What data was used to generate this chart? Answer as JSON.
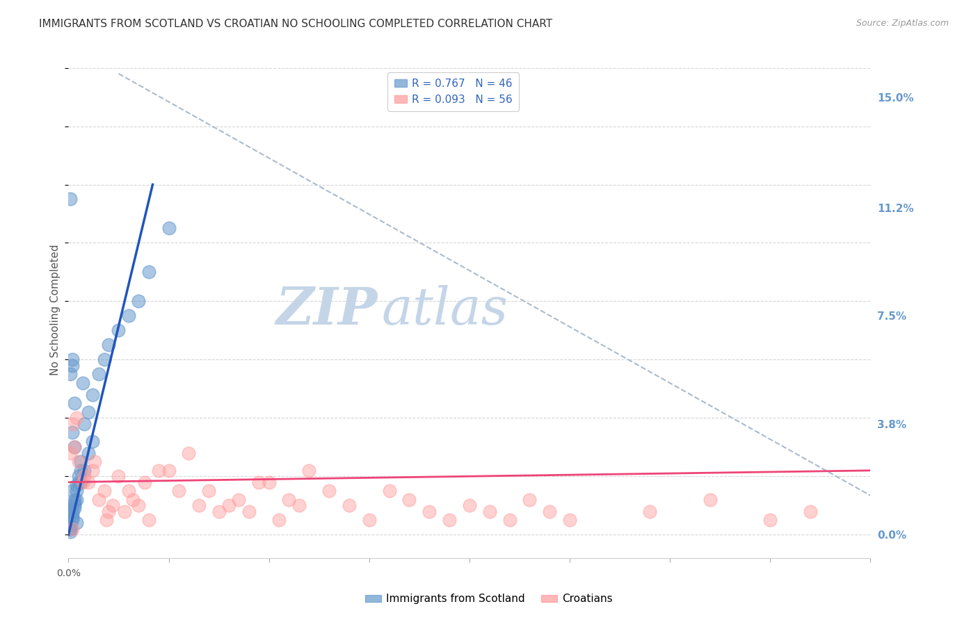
{
  "title": "IMMIGRANTS FROM SCOTLAND VS CROATIAN NO SCHOOLING COMPLETED CORRELATION CHART",
  "source": "Source: ZipAtlas.com",
  "ylabel": "No Schooling Completed",
  "ytick_labels": [
    "15.0%",
    "11.2%",
    "7.5%",
    "3.8%",
    "0.0%"
  ],
  "ytick_values": [
    0.15,
    0.112,
    0.075,
    0.038,
    0.0
  ],
  "xlim": [
    0.0,
    0.4
  ],
  "ylim": [
    -0.008,
    0.162
  ],
  "scotland_R": 0.767,
  "scotland_N": 46,
  "croatian_R": 0.093,
  "croatian_N": 56,
  "scatter_color_scotland": "#6699CC",
  "scatter_color_croatian": "#FF9999",
  "line_color_scotland": "#2255BB",
  "line_color_croatian": "#EE4477",
  "dashed_line_color": "#AABBCC",
  "watermark_zip": "ZIP",
  "watermark_atlas": "atlas",
  "watermark_color_zip": "#C5D5E8",
  "watermark_color_atlas": "#C5D5E8",
  "legend_scotland": "Immigrants from Scotland",
  "legend_croatian": "Croatians",
  "background_color": "#FFFFFF",
  "grid_color": "#CCCCCC",
  "title_color": "#333333",
  "right_axis_color": "#6699CC",
  "scotland_scatter_x": [
    0.002,
    0.003,
    0.001,
    0.004,
    0.005,
    0.006,
    0.003,
    0.002,
    0.001,
    0.008,
    0.01,
    0.012,
    0.015,
    0.018,
    0.02,
    0.025,
    0.03,
    0.035,
    0.04,
    0.05,
    0.001,
    0.002,
    0.003,
    0.004,
    0.006,
    0.008,
    0.01,
    0.012,
    0.002,
    0.003,
    0.001,
    0.004,
    0.005,
    0.006,
    0.002,
    0.001,
    0.003,
    0.007,
    0.002,
    0.001,
    0.001,
    0.002,
    0.003,
    0.004,
    0.001,
    0.002
  ],
  "scotland_scatter_y": [
    0.005,
    0.01,
    0.008,
    0.015,
    0.02,
    0.025,
    0.03,
    0.035,
    0.002,
    0.038,
    0.042,
    0.048,
    0.055,
    0.06,
    0.065,
    0.07,
    0.075,
    0.08,
    0.09,
    0.105,
    0.003,
    0.006,
    0.009,
    0.012,
    0.018,
    0.022,
    0.028,
    0.032,
    0.007,
    0.011,
    0.001,
    0.004,
    0.018,
    0.022,
    0.06,
    0.055,
    0.045,
    0.052,
    0.015,
    0.002,
    0.003,
    0.008,
    0.012,
    0.017,
    0.115,
    0.058
  ],
  "croatian_scatter_x": [
    0.002,
    0.005,
    0.01,
    0.015,
    0.02,
    0.025,
    0.03,
    0.035,
    0.04,
    0.05,
    0.06,
    0.07,
    0.08,
    0.09,
    0.1,
    0.11,
    0.12,
    0.13,
    0.14,
    0.15,
    0.003,
    0.007,
    0.012,
    0.018,
    0.022,
    0.028,
    0.032,
    0.038,
    0.045,
    0.055,
    0.065,
    0.075,
    0.085,
    0.095,
    0.105,
    0.115,
    0.16,
    0.17,
    0.18,
    0.19,
    0.2,
    0.21,
    0.22,
    0.23,
    0.24,
    0.25,
    0.29,
    0.32,
    0.35,
    0.37,
    0.004,
    0.008,
    0.013,
    0.019,
    0.002,
    0.001
  ],
  "croatian_scatter_y": [
    0.038,
    0.025,
    0.018,
    0.012,
    0.008,
    0.02,
    0.015,
    0.01,
    0.005,
    0.022,
    0.028,
    0.015,
    0.01,
    0.008,
    0.018,
    0.012,
    0.022,
    0.015,
    0.01,
    0.005,
    0.03,
    0.018,
    0.022,
    0.015,
    0.01,
    0.008,
    0.012,
    0.018,
    0.022,
    0.015,
    0.01,
    0.008,
    0.012,
    0.018,
    0.005,
    0.01,
    0.015,
    0.012,
    0.008,
    0.005,
    0.01,
    0.008,
    0.005,
    0.012,
    0.008,
    0.005,
    0.008,
    0.012,
    0.005,
    0.008,
    0.04,
    0.02,
    0.025,
    0.005,
    0.002,
    0.028
  ],
  "scotland_line_x": [
    0.0,
    0.042
  ],
  "scotland_line_y": [
    0.0,
    0.12
  ],
  "croatian_line_x": [
    0.0,
    0.4
  ],
  "croatian_line_y": [
    0.018,
    0.022
  ],
  "dashed_line_x": [
    0.025,
    0.44
  ],
  "dashed_line_y": [
    0.158,
    -0.002
  ]
}
